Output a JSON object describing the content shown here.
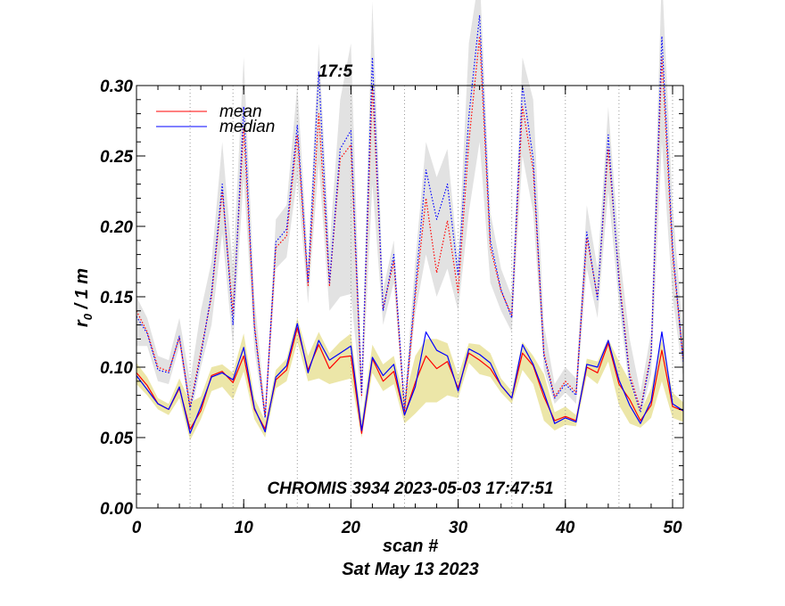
{
  "chart_data": {
    "type": "line",
    "title_time_marker": "17:5",
    "annotation": "CHROMIS 3934 2023-05-03 17:47:51",
    "xlabel": "scan #",
    "date_label": "Sat May 13 2023",
    "ylabel_main": "r",
    "ylabel_sub": "0",
    "ylabel_rest": " / 1 m",
    "xlim": [
      0,
      51
    ],
    "ylim": [
      0,
      0.3
    ],
    "x_ticks": [
      0,
      10,
      20,
      30,
      40,
      50
    ],
    "x_tick_labels": [
      "0",
      "10",
      "20",
      "30",
      "40",
      "50"
    ],
    "y_ticks": [
      0,
      0.05,
      0.1,
      0.15,
      0.2,
      0.25,
      0.3
    ],
    "y_tick_labels": [
      "0.00",
      "0.05",
      "0.10",
      "0.15",
      "0.20",
      "0.25",
      "0.30"
    ],
    "x_minor_step": 2,
    "y_minor_step": 0.01,
    "vertical_guides": [
      5,
      9,
      15,
      20,
      25,
      30,
      35,
      40,
      45,
      50
    ],
    "legend": [
      {
        "label": "mean",
        "color": "#ff0000"
      },
      {
        "label": "median",
        "color": "#0000ff"
      }
    ],
    "series": [
      {
        "name": "mean",
        "style": "solid",
        "color": "#ff0000",
        "values": [
          0.096,
          0.087,
          0.074,
          0.07,
          0.085,
          0.056,
          0.069,
          0.094,
          0.097,
          0.089,
          0.108,
          0.07,
          0.056,
          0.091,
          0.098,
          0.128,
          0.098,
          0.116,
          0.099,
          0.107,
          0.108,
          0.053,
          0.106,
          0.09,
          0.097,
          0.066,
          0.089,
          0.108,
          0.099,
          0.104,
          0.085,
          0.11,
          0.105,
          0.099,
          0.087,
          0.078,
          0.11,
          0.101,
          0.079,
          0.062,
          0.065,
          0.062,
          0.1,
          0.096,
          0.117,
          0.088,
          0.077,
          0.062,
          0.073,
          0.112,
          0.072,
          0.069
        ]
      },
      {
        "name": "median",
        "style": "solid",
        "color": "#0000ff",
        "values": [
          0.094,
          0.084,
          0.074,
          0.07,
          0.086,
          0.053,
          0.072,
          0.093,
          0.096,
          0.091,
          0.114,
          0.071,
          0.054,
          0.093,
          0.101,
          0.131,
          0.096,
          0.119,
          0.105,
          0.11,
          0.115,
          0.055,
          0.107,
          0.094,
          0.102,
          0.066,
          0.086,
          0.125,
          0.112,
          0.108,
          0.083,
          0.113,
          0.109,
          0.103,
          0.087,
          0.078,
          0.116,
          0.102,
          0.082,
          0.06,
          0.064,
          0.061,
          0.102,
          0.1,
          0.119,
          0.091,
          0.073,
          0.06,
          0.076,
          0.125,
          0.074,
          0.069
        ]
      },
      {
        "name": "mean (dotted)",
        "style": "dotted",
        "color": "#ff0000",
        "values": [
          0.14,
          0.125,
          0.1,
          0.097,
          0.121,
          0.072,
          0.111,
          0.15,
          0.225,
          0.138,
          0.27,
          0.13,
          0.065,
          0.185,
          0.193,
          0.265,
          0.158,
          0.28,
          0.158,
          0.248,
          0.258,
          0.08,
          0.3,
          0.142,
          0.175,
          0.068,
          0.15,
          0.22,
          0.167,
          0.204,
          0.153,
          0.26,
          0.335,
          0.185,
          0.154,
          0.137,
          0.285,
          0.24,
          0.11,
          0.079,
          0.09,
          0.082,
          0.192,
          0.15,
          0.255,
          0.165,
          0.095,
          0.07,
          0.11,
          0.32,
          0.18,
          0.105
        ]
      },
      {
        "name": "median (dotted)",
        "style": "dotted",
        "color": "#0000ff",
        "values": [
          0.136,
          0.124,
          0.098,
          0.096,
          0.122,
          0.07,
          0.108,
          0.153,
          0.23,
          0.13,
          0.285,
          0.128,
          0.064,
          0.189,
          0.198,
          0.272,
          0.16,
          0.31,
          0.16,
          0.255,
          0.268,
          0.082,
          0.32,
          0.14,
          0.18,
          0.07,
          0.155,
          0.24,
          0.205,
          0.23,
          0.165,
          0.278,
          0.35,
          0.19,
          0.155,
          0.135,
          0.3,
          0.248,
          0.108,
          0.078,
          0.088,
          0.08,
          0.196,
          0.148,
          0.265,
          0.16,
          0.092,
          0.068,
          0.108,
          0.335,
          0.185,
          0.103
        ]
      }
    ],
    "bands": [
      {
        "name": "mean range",
        "color": "#ece6a8",
        "low": [
          0.088,
          0.08,
          0.07,
          0.066,
          0.078,
          0.048,
          0.063,
          0.083,
          0.086,
          0.077,
          0.097,
          0.063,
          0.05,
          0.085,
          0.09,
          0.118,
          0.09,
          0.092,
          0.088,
          0.09,
          0.092,
          0.05,
          0.096,
          0.083,
          0.088,
          0.06,
          0.067,
          0.075,
          0.075,
          0.08,
          0.078,
          0.103,
          0.095,
          0.093,
          0.082,
          0.074,
          0.098,
          0.088,
          0.062,
          0.055,
          0.059,
          0.058,
          0.094,
          0.088,
          0.104,
          0.073,
          0.06,
          0.057,
          0.064,
          0.09,
          0.064,
          0.061
        ],
        "high": [
          0.103,
          0.093,
          0.078,
          0.074,
          0.092,
          0.075,
          0.079,
          0.1,
          0.102,
          0.096,
          0.124,
          0.078,
          0.062,
          0.098,
          0.106,
          0.135,
          0.108,
          0.125,
          0.11,
          0.118,
          0.124,
          0.062,
          0.116,
          0.102,
          0.108,
          0.077,
          0.108,
          0.12,
          0.12,
          0.117,
          0.094,
          0.117,
          0.116,
          0.11,
          0.092,
          0.083,
          0.118,
          0.108,
          0.095,
          0.068,
          0.072,
          0.066,
          0.106,
          0.104,
          0.12,
          0.104,
          0.09,
          0.068,
          0.085,
          0.12,
          0.082,
          0.075
        ]
      },
      {
        "name": "dotted range",
        "color": "#e2e2e2",
        "low": [
          0.115,
          0.115,
          0.09,
          0.088,
          0.115,
          0.064,
          0.1,
          0.13,
          0.195,
          0.115,
          0.235,
          0.112,
          0.06,
          0.17,
          0.178,
          0.235,
          0.145,
          0.245,
          0.14,
          0.15,
          0.152,
          0.074,
          0.23,
          0.13,
          0.16,
          0.064,
          0.138,
          0.18,
          0.15,
          0.17,
          0.14,
          0.21,
          0.26,
          0.16,
          0.14,
          0.125,
          0.25,
          0.21,
          0.098,
          0.074,
          0.082,
          0.074,
          0.17,
          0.135,
          0.225,
          0.145,
          0.083,
          0.064,
          0.095,
          0.26,
          0.15,
          0.092
        ],
        "high": [
          0.15,
          0.135,
          0.108,
          0.105,
          0.135,
          0.09,
          0.14,
          0.175,
          0.26,
          0.17,
          0.32,
          0.15,
          0.07,
          0.205,
          0.215,
          0.3,
          0.175,
          0.33,
          0.185,
          0.29,
          0.33,
          0.09,
          0.36,
          0.155,
          0.19,
          0.076,
          0.175,
          0.26,
          0.235,
          0.255,
          0.175,
          0.33,
          0.38,
          0.21,
          0.17,
          0.15,
          0.32,
          0.29,
          0.13,
          0.088,
          0.1,
          0.092,
          0.215,
          0.17,
          0.285,
          0.185,
          0.12,
          0.082,
          0.125,
          0.38,
          0.215,
          0.12
        ]
      }
    ]
  }
}
